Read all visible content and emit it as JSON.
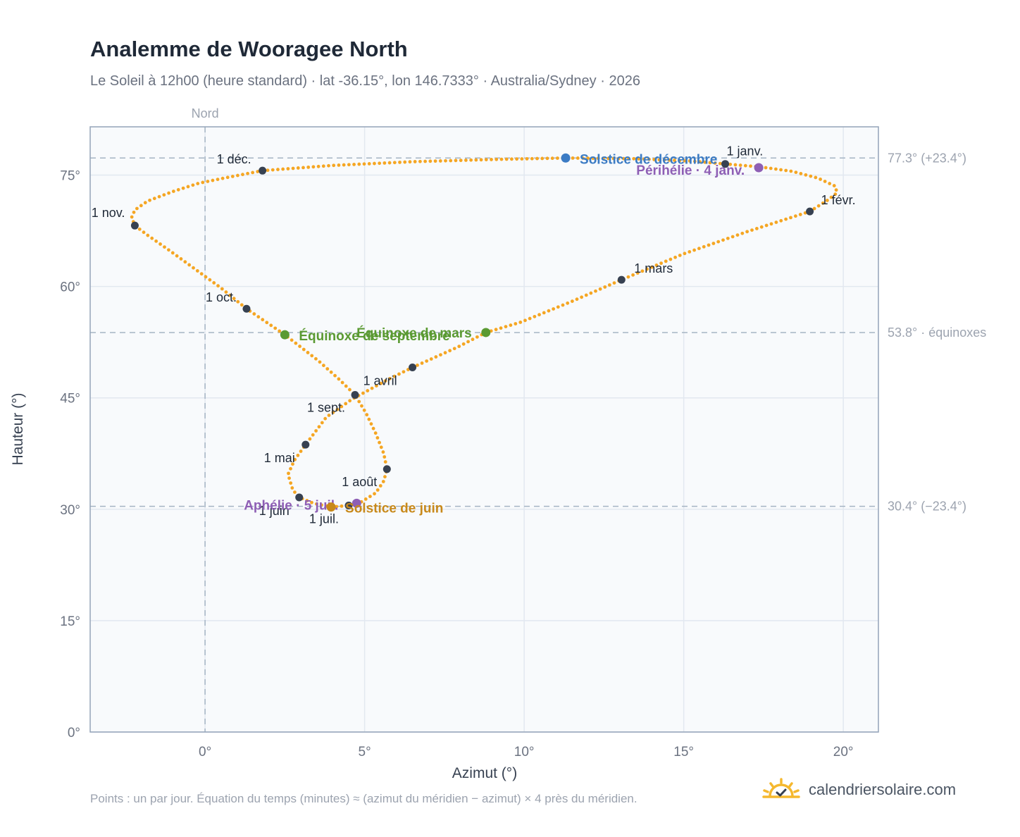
{
  "title": "Analemme de Wooragee North",
  "subtitle": "Le Soleil à 12h00 (heure standard) · lat -36.15°, lon 146.7333° · Australia/Sydney · 2026",
  "footer": "Points : un par jour. Équation du temps (minutes) ≈ (azimut du méridien − azimut) × 4 près du méridien.",
  "brand": {
    "name": "calendriersolaire.com",
    "icon": "sun-check-icon",
    "icon_color": "#f5b82e",
    "check_color": "#374151"
  },
  "chart_data": {
    "type": "scatter",
    "xlabel": "Azimut (°)",
    "ylabel": "Hauteur (°)",
    "xlim": [
      -3.6,
      21.1
    ],
    "ylim": [
      0,
      81.5
    ],
    "xticks": [
      0,
      5,
      10,
      15,
      20
    ],
    "xtick_labels": [
      "0°",
      "5°",
      "10°",
      "15°",
      "20°"
    ],
    "yticks": [
      0,
      15,
      30,
      45,
      60,
      75
    ],
    "ytick_labels": [
      "0°",
      "15°",
      "30°",
      "45°",
      "60°",
      "75°"
    ],
    "grid": true,
    "meridian": {
      "x": 0,
      "label": "Nord"
    },
    "reference_lines": [
      {
        "y": 77.3,
        "label": "77.3° (+23.4°)"
      },
      {
        "y": 53.8,
        "label": "53.8° · équinoxes"
      },
      {
        "y": 30.4,
        "label": "30.4° (−23.4°)"
      }
    ],
    "curve_color": "#f5a623",
    "month_markers": [
      {
        "label": "1 janv.",
        "x": 16.3,
        "y": 76.5
      },
      {
        "label": "1 févr.",
        "x": 18.95,
        "y": 70.1
      },
      {
        "label": "1 mars",
        "x": 13.05,
        "y": 60.9
      },
      {
        "label": "1 avril",
        "x": 6.5,
        "y": 49.1
      },
      {
        "label": "1 mai",
        "x": 3.15,
        "y": 38.7
      },
      {
        "label": "1 juin",
        "x": 2.95,
        "y": 31.6
      },
      {
        "label": "1 juil.",
        "x": 4.5,
        "y": 30.5
      },
      {
        "label": "1 août",
        "x": 5.7,
        "y": 35.4
      },
      {
        "label": "1 sept.",
        "x": 4.7,
        "y": 45.4
      },
      {
        "label": "1 oct.",
        "x": 1.3,
        "y": 57.0
      },
      {
        "label": "1 nov.",
        "x": -2.2,
        "y": 68.2
      },
      {
        "label": "1 déc.",
        "x": 1.8,
        "y": 75.6
      }
    ],
    "events": [
      {
        "label": "Solstice de décembre",
        "x": 11.3,
        "y": 77.3,
        "color": "#3b7bc4"
      },
      {
        "label": "Périhélie · 4 janv.",
        "x": 17.35,
        "y": 76.0,
        "color": "#8e5fb5"
      },
      {
        "label": "Équinoxe de mars",
        "x": 8.8,
        "y": 53.8,
        "color": "#5a9a32"
      },
      {
        "label": "Équinoxe de septembre",
        "x": 2.5,
        "y": 53.5,
        "color": "#5a9a32"
      },
      {
        "label": "Aphélie · 5 juil.",
        "x": 4.75,
        "y": 30.8,
        "color": "#8e5fb5"
      },
      {
        "label": "Solstice de juin",
        "x": 3.95,
        "y": 30.3,
        "color": "#c8891a"
      }
    ],
    "daily_path": [
      [
        16.3,
        76.5
      ],
      [
        17.4,
        76.1
      ],
      [
        18.4,
        75.5
      ],
      [
        19.2,
        74.6
      ],
      [
        19.75,
        73.5
      ],
      [
        19.8,
        72.6
      ],
      [
        19.5,
        71.6
      ],
      [
        18.95,
        70.1
      ],
      [
        17.0,
        67.4
      ],
      [
        15.0,
        64.4
      ],
      [
        13.05,
        60.9
      ],
      [
        11.5,
        58.0
      ],
      [
        9.9,
        55.2
      ],
      [
        8.8,
        53.8
      ],
      [
        7.9,
        51.8
      ],
      [
        6.5,
        49.1
      ],
      [
        5.7,
        47.4
      ],
      [
        4.6,
        44.8
      ],
      [
        3.8,
        42.4
      ],
      [
        3.15,
        38.7
      ],
      [
        2.8,
        36.6
      ],
      [
        2.6,
        34.7
      ],
      [
        2.75,
        32.6
      ],
      [
        2.95,
        31.6
      ],
      [
        3.4,
        30.8
      ],
      [
        3.95,
        30.3
      ],
      [
        4.5,
        30.5
      ],
      [
        4.9,
        31.0
      ],
      [
        5.35,
        32.2
      ],
      [
        5.6,
        33.8
      ],
      [
        5.7,
        35.4
      ],
      [
        5.6,
        37.5
      ],
      [
        5.35,
        40.2
      ],
      [
        5.05,
        42.9
      ],
      [
        4.7,
        45.4
      ],
      [
        4.2,
        47.5
      ],
      [
        3.55,
        50.0
      ],
      [
        2.5,
        53.5
      ],
      [
        1.3,
        57.0
      ],
      [
        0.5,
        59.8
      ],
      [
        -0.3,
        62.3
      ],
      [
        -1.1,
        64.8
      ],
      [
        -1.8,
        66.9
      ],
      [
        -2.2,
        68.2
      ],
      [
        -2.3,
        69.3
      ],
      [
        -2.2,
        70.3
      ],
      [
        -1.8,
        71.5
      ],
      [
        -1.0,
        72.8
      ],
      [
        -0.2,
        73.9
      ],
      [
        0.6,
        74.6
      ],
      [
        1.8,
        75.6
      ],
      [
        4.0,
        76.3
      ],
      [
        6.5,
        76.8
      ],
      [
        9.0,
        77.1
      ],
      [
        11.3,
        77.3
      ],
      [
        13.5,
        77.2
      ],
      [
        15.2,
        76.9
      ],
      [
        16.3,
        76.5
      ]
    ]
  }
}
